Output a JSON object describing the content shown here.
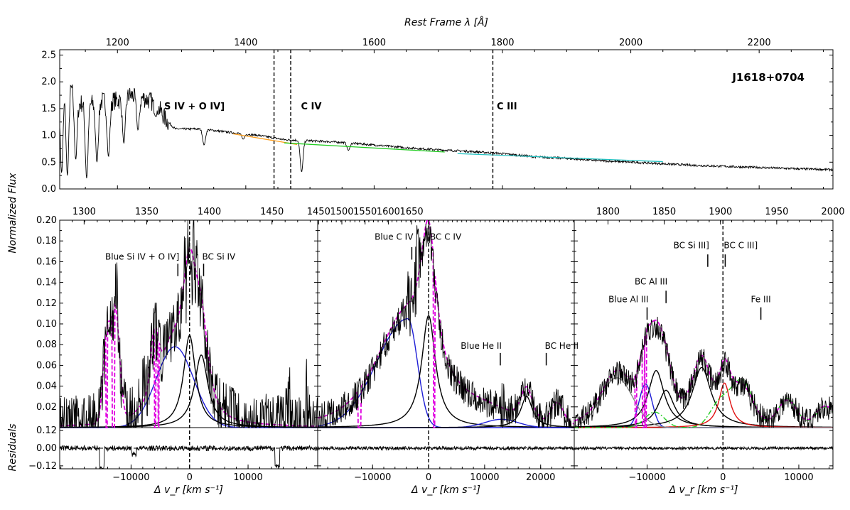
{
  "chart_data": {
    "type": "line",
    "object_name": "J1618+0704",
    "top_xlabel": "Rest Frame λ [Å]",
    "ylabel": "Normalized Flux",
    "residuals_label": "Residuals",
    "xlabel_bottom": "Δ v_r [km s⁻¹]",
    "overview": {
      "xlim": [
        1110,
        2315
      ],
      "ylim": [
        0,
        2.6
      ],
      "xticks": [
        1200,
        1400,
        1600,
        1800,
        2000,
        2200
      ],
      "yticks": [
        0.0,
        0.5,
        1.0,
        1.5,
        2.0,
        2.5
      ],
      "vlines": [
        1444,
        1470,
        1785
      ],
      "region_labels": [
        {
          "text": "S IV + O IV]",
          "x": 1320,
          "y": 1.55
        },
        {
          "text": "C IV",
          "x": 1502,
          "y": 1.55
        },
        {
          "text": "C III",
          "x": 1807,
          "y": 1.55
        }
      ],
      "continuum_segments": [
        {
          "name": "S IV + O IV] continuum",
          "color": "#ff9f1c",
          "x": [
            1380,
            1480
          ],
          "y": [
            1.03,
            0.83
          ]
        },
        {
          "name": "C IV continuum",
          "color": "#22cc22",
          "x": [
            1460,
            1710
          ],
          "y": [
            0.86,
            0.69
          ]
        },
        {
          "name": "C III continuum",
          "color": "#22c2c2",
          "x": [
            1730,
            2050
          ],
          "y": [
            0.66,
            0.51
          ]
        }
      ],
      "spectrum_anchors": {
        "x": [
          1110,
          1125,
          1140,
          1160,
          1180,
          1200,
          1220,
          1240,
          1260,
          1275,
          1290,
          1330,
          1380,
          1420,
          1460,
          1500,
          1550,
          1600,
          1650,
          1700,
          1750,
          1800,
          1850,
          1900,
          1950,
          2000,
          2050,
          2100,
          2150,
          2200,
          2250,
          2315
        ],
        "y": [
          1.9,
          2.0,
          1.6,
          1.6,
          1.65,
          1.65,
          1.75,
          1.7,
          1.6,
          1.3,
          1.12,
          1.12,
          1.05,
          1.0,
          0.92,
          0.9,
          0.87,
          0.82,
          0.77,
          0.73,
          0.7,
          0.66,
          0.6,
          0.57,
          0.53,
          0.5,
          0.47,
          0.44,
          0.42,
          0.4,
          0.38,
          0.36
        ]
      },
      "absorption_dips": [
        {
          "x": 1113,
          "y": 0.3
        },
        {
          "x": 1122,
          "y": 0.25
        },
        {
          "x": 1135,
          "y": 0.55
        },
        {
          "x": 1152,
          "y": 0.2
        },
        {
          "x": 1168,
          "y": 0.5
        },
        {
          "x": 1186,
          "y": 0.6
        },
        {
          "x": 1210,
          "y": 0.85
        },
        {
          "x": 1232,
          "y": 1.1
        },
        {
          "x": 1260,
          "y": 1.35
        },
        {
          "x": 1335,
          "y": 0.82
        },
        {
          "x": 1396,
          "y": 0.93
        },
        {
          "x": 1487,
          "y": 0.32
        },
        {
          "x": 1560,
          "y": 0.72
        }
      ]
    },
    "panels": [
      {
        "name": "SiIV",
        "xlim": [
          -22200,
          21900
        ],
        "top_xlim": [
          1280.5,
          1486.5
        ],
        "top_ticks": [
          1300,
          1350,
          1400,
          1450
        ],
        "xticks": [
          -10000,
          0,
          10000
        ],
        "ylim": [
          0.0,
          0.2
        ],
        "yticks": [
          0.02,
          0.04,
          0.06,
          0.08,
          0.1,
          0.12,
          0.14,
          0.16,
          0.18,
          0.2
        ],
        "annotations": [
          {
            "text": "Blue Si IV + O IV]",
            "x": -2000,
            "y": 0.162,
            "tick_y": [
              0.146,
              0.158
            ],
            "align": "end"
          },
          {
            "text": "BC Si IV",
            "x": 2400,
            "y": 0.162,
            "tick_y": [
              0.146,
              0.158
            ],
            "align": "start"
          }
        ],
        "components": [
          {
            "name": "broad-blue-component",
            "color": "#1f1fd6",
            "kind": "gauss",
            "params": {
              "peak": 0.078,
              "center": -2500,
              "fwhm": 7500
            }
          },
          {
            "name": "broad-core-component",
            "color": "#000000",
            "kind": "lorentz",
            "params": {
              "peak": 0.089,
              "center": 0,
              "fwhm": 2500
            }
          },
          {
            "name": "red-core-component",
            "color": "#000000",
            "kind": "lorentz",
            "params": {
              "peak": 0.07,
              "center": 2000,
              "fwhm": 2800
            }
          }
        ],
        "absorbed_model": {
          "color": "#e000e0",
          "base": [
            {
              "peak": 0.078,
              "center": -2500,
              "fwhm": 7500
            },
            {
              "peak": 0.089,
              "center": 0,
              "fwhm": 2500
            },
            {
              "peak": 0.07,
              "center": 2000,
              "fwhm": 2800
            }
          ],
          "extra": [
            {
              "peak": 0.108,
              "center": -12700,
              "fwhm": 1700
            },
            {
              "peak": 0.08,
              "center": -14200,
              "fwhm": 1400
            },
            {
              "peak": 0.05,
              "center": -6000,
              "fwhm": 1500
            }
          ],
          "cuts": [
            -14200,
            -13100,
            -12900,
            -5900,
            -5300
          ]
        },
        "noise_amp": 0.03,
        "residual_noise": 0.018,
        "residual_dips": [
          {
            "x": -15000,
            "depth": 0.14
          },
          {
            "x": -9500,
            "depth": 0.04
          },
          {
            "x": 15000,
            "depth": 0.12
          }
        ],
        "peaks": [
          {
            "x": -12500,
            "h": 0.03
          },
          {
            "x": -8000,
            "h": 0.02
          },
          {
            "x": -700,
            "h": 0.04
          },
          {
            "x": 700,
            "h": 0.04
          },
          {
            "x": 17000,
            "h": 0.05
          },
          {
            "x": 20000,
            "h": 0.04
          }
        ]
      },
      {
        "name": "CIV",
        "xlim": [
          -19800,
          26000
        ],
        "top_xlim": [
          1448,
          2000
        ],
        "top_ticks": [
          1450,
          1500,
          1550,
          1600,
          1650
        ],
        "xticks": [
          -10000,
          0,
          10000,
          20000
        ],
        "ylim": [
          0.0,
          0.2
        ],
        "annotations": [
          {
            "text": "Blue C IV",
            "x": -3000,
            "y": 0.181,
            "tick_y": [
              0.162,
              0.174
            ],
            "align": "end"
          },
          {
            "text": "BC C IV",
            "x": 500,
            "y": 0.181,
            "tick_y": [
              0.162,
              0.174
            ],
            "align": "start"
          },
          {
            "text": "Blue He II",
            "x": 12800,
            "y": 0.076,
            "tick_y": [
              0.06,
              0.072
            ],
            "align": "end"
          },
          {
            "text": "BC He II",
            "x": 21000,
            "y": 0.076,
            "tick_y": [
              0.06,
              0.072
            ],
            "align": "start"
          }
        ],
        "components": [
          {
            "name": "blue-civ-component",
            "color": "#1f1fd6",
            "kind": "asym",
            "params": {
              "peak": 0.105,
              "center": -3700,
              "fwhm_l": 13000,
              "fwhm_r": 4000
            }
          },
          {
            "name": "bc-civ-component",
            "color": "#000000",
            "kind": "lorentz",
            "params": {
              "peak": 0.108,
              "center": 0,
              "fwhm": 3000
            }
          },
          {
            "name": "blue-heii-component",
            "color": "#1f1fd6",
            "kind": "gauss",
            "params": {
              "peak": 0.008,
              "center": 13000,
              "fwhm": 7000
            }
          },
          {
            "name": "bc-heii-component",
            "color": "#000000",
            "kind": "lorentz",
            "params": {
              "peak": 0.03,
              "center": 17500,
              "fwhm": 2500
            }
          }
        ],
        "absorbed_model": {
          "color": "#e000e0",
          "base": [
            {
              "peak": 0.105,
              "center": -3700,
              "fwhm": 13000
            },
            {
              "peak": 0.108,
              "center": 0,
              "fwhm": 3000
            },
            {
              "peak": 0.03,
              "center": 17500,
              "fwhm": 2500
            }
          ],
          "extra": [
            {
              "peak": 0.012,
              "center": 10000,
              "fwhm": 10000
            },
            {
              "peak": 0.02,
              "center": 23000,
              "fwhm": 2500
            }
          ],
          "cuts": [
            -12500,
            -12200,
            1000
          ]
        },
        "noise_amp": 0.015,
        "residual_noise": 0.012,
        "residual_dips": [],
        "peaks": [
          {
            "x": -2000,
            "h": 0.05
          },
          {
            "x": -3500,
            "h": 0.03
          },
          {
            "x": 13000,
            "h": 0.02
          }
        ]
      },
      {
        "name": "CIII",
        "xlim": [
          -19600,
          14500
        ],
        "top_xlim": [
          1770,
          2000
        ],
        "top_ticks": [
          1800,
          1850,
          1900,
          1950,
          2000
        ],
        "xticks": [
          -10000,
          0,
          10000
        ],
        "ylim": [
          0.0,
          0.2
        ],
        "annotations": [
          {
            "text": "Blue Al III",
            "x": -10000,
            "y": 0.121,
            "tick_y": [
              0.104,
              0.116
            ],
            "align": "end"
          },
          {
            "text": "BC Al III",
            "x": -7500,
            "y": 0.138,
            "tick_y": [
              0.12,
              0.132
            ],
            "align": "end"
          },
          {
            "text": "BC Si III]",
            "x": -2000,
            "y": 0.173,
            "tick_y": [
              0.155,
              0.167
            ],
            "align": "end"
          },
          {
            "text": "BC C III]",
            "x": 300,
            "y": 0.173,
            "tick_y": [
              0.155,
              0.167
            ],
            "align": "start"
          },
          {
            "text": "Fe III",
            "x": 5000,
            "y": 0.121,
            "tick_y": [
              0.104,
              0.116
            ],
            "align": "middle"
          }
        ],
        "components": [
          {
            "name": "blue-aliii-component",
            "color": "#1f1fd6",
            "kind": "gauss",
            "params": {
              "peak": 0.042,
              "center": -10200,
              "fwhm": 2000
            }
          },
          {
            "name": "bc-aliii-1-component",
            "color": "#000000",
            "kind": "lorentz",
            "params": {
              "peak": 0.055,
              "center": -8800,
              "fwhm": 2600
            }
          },
          {
            "name": "bc-aliii-2-component",
            "color": "#000000",
            "kind": "lorentz",
            "params": {
              "peak": 0.036,
              "center": -7500,
              "fwhm": 2600
            }
          },
          {
            "name": "bc-siiii-component",
            "color": "#000000",
            "kind": "lorentz",
            "params": {
              "peak": 0.058,
              "center": -2800,
              "fwhm": 3000
            }
          },
          {
            "name": "bc-ciii-component",
            "color": "#e01010",
            "kind": "lorentz",
            "params": {
              "peak": 0.043,
              "center": 200,
              "fwhm": 1800
            }
          },
          {
            "name": "gray-component",
            "color": "#888888",
            "kind": "gauss",
            "params": {
              "peak": 0.048,
              "center": -14000,
              "fwhm": 5000
            }
          },
          {
            "name": "fe-iii-template",
            "color": "#22cc22",
            "kind": "multi",
            "params": {
              "items": [
                {
                  "peak": 0.015,
                  "center": -9000,
                  "fwhm": 3000
                },
                {
                  "peak": 0.022,
                  "center": -500,
                  "fwhm": 3000
                },
                {
                  "peak": 0.045,
                  "center": 2500,
                  "fwhm": 3500
                },
                {
                  "peak": 0.028,
                  "center": 8500,
                  "fwhm": 3000
                },
                {
                  "peak": 0.02,
                  "center": 13500,
                  "fwhm": 3000
                }
              ]
            }
          }
        ],
        "absorbed_model": {
          "color": "#e000e0",
          "base": [
            {
              "peak": 0.042,
              "center": -10200,
              "fwhm": 2000
            },
            {
              "peak": 0.06,
              "center": -8800,
              "fwhm": 2600
            },
            {
              "peak": 0.036,
              "center": -7500,
              "fwhm": 2600
            },
            {
              "peak": 0.06,
              "center": -2800,
              "fwhm": 3000
            },
            {
              "peak": 0.043,
              "center": 200,
              "fwhm": 1800
            },
            {
              "peak": 0.048,
              "center": -14000,
              "fwhm": 5000
            }
          ],
          "extra": [
            {
              "peak": 0.035,
              "center": 2500,
              "fwhm": 3500
            },
            {
              "peak": 0.025,
              "center": 8500,
              "fwhm": 3000
            },
            {
              "peak": 0.02,
              "center": 13500,
              "fwhm": 3000
            }
          ],
          "cuts": [
            -11500,
            -10500,
            -10200
          ]
        },
        "noise_amp": 0.012,
        "residual_noise": 0.01,
        "residual_dips": [],
        "peaks": []
      }
    ],
    "residuals": {
      "ylim": [
        -0.14,
        0.14
      ],
      "yticks": [
        -0.12,
        0.0,
        0.12
      ],
      "ytick_labels": [
        "−0.12",
        "0.00",
        "0.12"
      ]
    }
  }
}
